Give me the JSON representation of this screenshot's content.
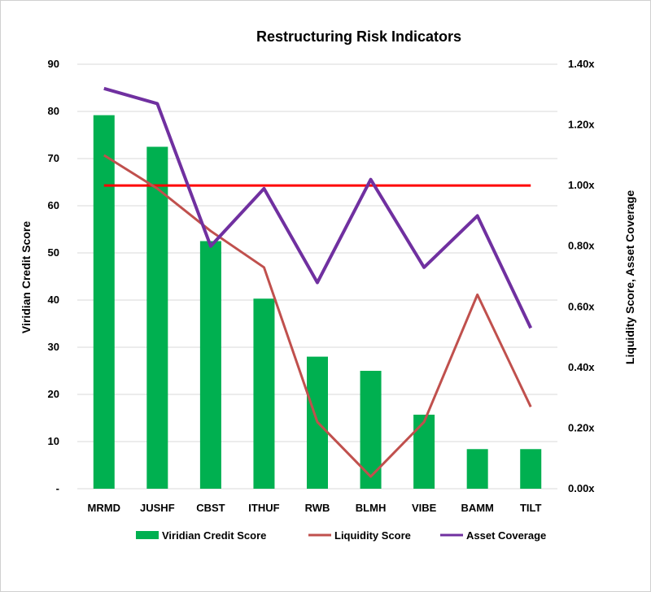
{
  "chart_data": {
    "type": "bar",
    "title": "Restructuring Risk Indicators",
    "categories": [
      "MRMD",
      "JUSHF",
      "CBST",
      "ITHUF",
      "RWB",
      "BLMH",
      "VIBE",
      "BAMM",
      "TILT"
    ],
    "ylabel": "Viridian Credit Score",
    "y2label": "Liquidity Score, Asset Coverage",
    "ylim": [
      0,
      90
    ],
    "y2lim": [
      0,
      1.4
    ],
    "y_ticks": [
      "-",
      "10",
      "20",
      "30",
      "40",
      "50",
      "60",
      "70",
      "80",
      "90"
    ],
    "y2_ticks": [
      "0.00x",
      "0.20x",
      "0.40x",
      "0.60x",
      "0.80x",
      "1.00x",
      "1.20x",
      "1.40x"
    ],
    "grid": true,
    "legend_position": "bottom",
    "series": [
      {
        "name": "Viridian Credit Score",
        "type": "bar",
        "axis": "left",
        "color": "#00B050",
        "values": [
          79.2,
          72.5,
          52.5,
          40.3,
          28.0,
          25.0,
          15.7,
          8.4,
          8.4
        ]
      },
      {
        "name": "Liquidity Score",
        "type": "line",
        "axis": "right",
        "color": "#C0504D",
        "values": [
          1.1,
          0.99,
          0.85,
          0.73,
          0.22,
          0.04,
          0.22,
          0.64,
          0.27
        ]
      },
      {
        "name": "Asset Coverage",
        "type": "line",
        "axis": "right",
        "color": "#7030A0",
        "values": [
          1.32,
          1.27,
          0.8,
          0.99,
          0.68,
          1.02,
          0.73,
          0.9,
          0.53
        ]
      }
    ],
    "reference_line": {
      "axis": "right",
      "value": 1.0,
      "color": "#FF0000"
    }
  }
}
